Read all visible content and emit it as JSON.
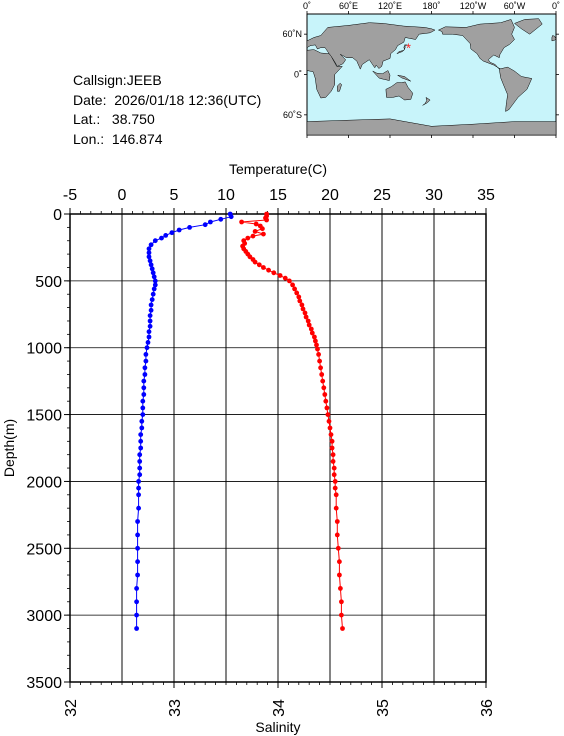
{
  "info": {
    "callsign": "Callsign:JEEB",
    "date_label": "Date:",
    "date_value": "2026/01/18 12:36(UTC)",
    "lat_label": "Lat.:",
    "lat_value": "38.750",
    "lon_label": "Lon.:",
    "lon_value": "146.874"
  },
  "map": {
    "lon_ticks": [
      "0˚",
      "60˚E",
      "120˚E",
      "180˚",
      "120˚W",
      "60˚W",
      "0˚"
    ],
    "lat_ticks": [
      "60˚N",
      "0˚",
      "60˚S"
    ],
    "station": {
      "lat": 38.75,
      "lon": 146.874
    },
    "colors": {
      "ocean": "#c8f4fa",
      "land": "#a0a0a0",
      "station": "#ff2020"
    }
  },
  "chart_data": {
    "type": "line",
    "title": "",
    "ylabel": "Depth(m)",
    "ylim": [
      0,
      3500
    ],
    "y_ticks": [
      "0",
      "500",
      "1000",
      "1500",
      "2000",
      "2500",
      "3000",
      "3500"
    ],
    "grid": true,
    "top_axis": {
      "label": "Temperature(C)",
      "range": [
        -5,
        35
      ],
      "ticks": [
        "-5",
        "0",
        "5",
        "10",
        "15",
        "20",
        "25",
        "30",
        "35"
      ]
    },
    "bottom_axis": {
      "label": "Salinity",
      "range": [
        32,
        36
      ],
      "ticks": [
        "32",
        "33",
        "34",
        "35",
        "36"
      ]
    },
    "series": [
      {
        "axis": "temperature",
        "color": "#ff0000",
        "points": [
          [
            13.9,
            0
          ],
          [
            13.9,
            15
          ],
          [
            13.8,
            30
          ],
          [
            13.9,
            45
          ],
          [
            11.5,
            60
          ],
          [
            12.9,
            75
          ],
          [
            13.3,
            90
          ],
          [
            13.5,
            110
          ],
          [
            12.8,
            130
          ],
          [
            13.6,
            150
          ],
          [
            12.6,
            165
          ],
          [
            12.1,
            180
          ],
          [
            11.7,
            200
          ],
          [
            11.8,
            220
          ],
          [
            11.6,
            240
          ],
          [
            11.7,
            260
          ],
          [
            11.9,
            280
          ],
          [
            12.1,
            300
          ],
          [
            12.3,
            320
          ],
          [
            12.6,
            340
          ],
          [
            12.8,
            360
          ],
          [
            13.2,
            380
          ],
          [
            13.6,
            400
          ],
          [
            14.1,
            420
          ],
          [
            14.6,
            440
          ],
          [
            15.2,
            460
          ],
          [
            15.7,
            480
          ],
          [
            16.1,
            500
          ],
          [
            16.4,
            530
          ],
          [
            16.6,
            560
          ],
          [
            16.8,
            590
          ],
          [
            17.0,
            620
          ],
          [
            17.1,
            650
          ],
          [
            17.3,
            680
          ],
          [
            17.4,
            710
          ],
          [
            17.6,
            740
          ],
          [
            17.7,
            770
          ],
          [
            17.9,
            800
          ],
          [
            18.0,
            830
          ],
          [
            18.2,
            860
          ],
          [
            18.3,
            890
          ],
          [
            18.5,
            920
          ],
          [
            18.6,
            950
          ],
          [
            18.7,
            980
          ],
          [
            18.8,
            1010
          ],
          [
            18.9,
            1050
          ],
          [
            19.0,
            1100
          ],
          [
            19.1,
            1150
          ],
          [
            19.2,
            1200
          ],
          [
            19.3,
            1250
          ],
          [
            19.4,
            1300
          ],
          [
            19.5,
            1350
          ],
          [
            19.6,
            1400
          ],
          [
            19.7,
            1450
          ],
          [
            19.8,
            1500
          ],
          [
            19.9,
            1550
          ],
          [
            20.0,
            1600
          ],
          [
            20.1,
            1650
          ],
          [
            20.2,
            1700
          ],
          [
            20.2,
            1750
          ],
          [
            20.3,
            1800
          ],
          [
            20.3,
            1850
          ],
          [
            20.4,
            1900
          ],
          [
            20.4,
            1950
          ],
          [
            20.5,
            2000
          ],
          [
            20.5,
            2050
          ],
          [
            20.6,
            2100
          ],
          [
            20.6,
            2200
          ],
          [
            20.7,
            2300
          ],
          [
            20.7,
            2400
          ],
          [
            20.8,
            2500
          ],
          [
            20.9,
            2600
          ],
          [
            20.9,
            2700
          ],
          [
            21.0,
            2800
          ],
          [
            21.1,
            2900
          ],
          [
            21.1,
            3000
          ],
          [
            21.2,
            3100
          ]
        ]
      },
      {
        "axis": "salinity",
        "color": "#0000ff",
        "points": [
          [
            33.54,
            0
          ],
          [
            33.55,
            20
          ],
          [
            33.45,
            40
          ],
          [
            33.35,
            60
          ],
          [
            33.3,
            80
          ],
          [
            33.15,
            100
          ],
          [
            33.05,
            120
          ],
          [
            32.98,
            140
          ],
          [
            32.92,
            160
          ],
          [
            32.88,
            180
          ],
          [
            32.82,
            200
          ],
          [
            32.78,
            230
          ],
          [
            32.76,
            260
          ],
          [
            32.76,
            290
          ],
          [
            32.76,
            320
          ],
          [
            32.77,
            350
          ],
          [
            32.78,
            380
          ],
          [
            32.79,
            410
          ],
          [
            32.8,
            440
          ],
          [
            32.81,
            470
          ],
          [
            32.82,
            500
          ],
          [
            32.82,
            530
          ],
          [
            32.81,
            560
          ],
          [
            32.8,
            600
          ],
          [
            32.79,
            640
          ],
          [
            32.78,
            680
          ],
          [
            32.78,
            720
          ],
          [
            32.77,
            760
          ],
          [
            32.77,
            800
          ],
          [
            32.77,
            840
          ],
          [
            32.76,
            880
          ],
          [
            32.76,
            920
          ],
          [
            32.75,
            960
          ],
          [
            32.74,
            1000
          ],
          [
            32.73,
            1050
          ],
          [
            32.73,
            1100
          ],
          [
            32.72,
            1150
          ],
          [
            32.72,
            1200
          ],
          [
            32.71,
            1250
          ],
          [
            32.71,
            1300
          ],
          [
            32.71,
            1350
          ],
          [
            32.7,
            1400
          ],
          [
            32.7,
            1450
          ],
          [
            32.7,
            1500
          ],
          [
            32.69,
            1550
          ],
          [
            32.69,
            1600
          ],
          [
            32.68,
            1650
          ],
          [
            32.68,
            1700
          ],
          [
            32.68,
            1750
          ],
          [
            32.67,
            1800
          ],
          [
            32.67,
            1850
          ],
          [
            32.67,
            1900
          ],
          [
            32.67,
            1950
          ],
          [
            32.66,
            2000
          ],
          [
            32.66,
            2050
          ],
          [
            32.66,
            2100
          ],
          [
            32.66,
            2200
          ],
          [
            32.65,
            2300
          ],
          [
            32.65,
            2400
          ],
          [
            32.65,
            2500
          ],
          [
            32.65,
            2600
          ],
          [
            32.65,
            2700
          ],
          [
            32.64,
            2800
          ],
          [
            32.64,
            2900
          ],
          [
            32.64,
            3000
          ],
          [
            32.64,
            3100
          ]
        ]
      }
    ]
  }
}
